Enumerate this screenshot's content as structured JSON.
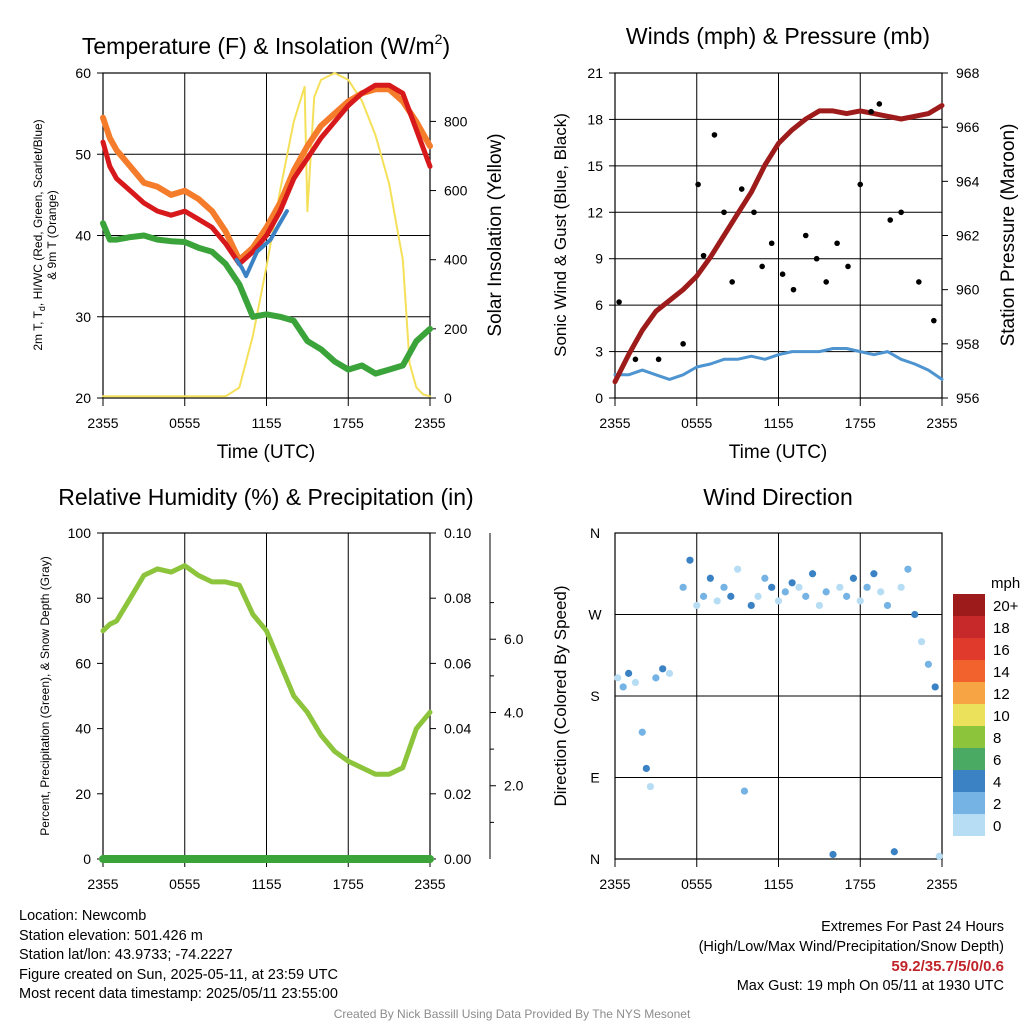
{
  "time_ticks": [
    "2355",
    "0555",
    "1155",
    "1755",
    "2355"
  ],
  "panels": {
    "temperature": {
      "title": "Temperature (F) & Insolation (W/m",
      "title_superscript": "2",
      "title_close": ")",
      "ylabel_left_line1": "2m T, T",
      "ylabel_left_sub": "d",
      "ylabel_left_line1_rest": ", HI/WC (Red, Green, Scarlet/Blue)",
      "ylabel_left_line2": "& 9m T (Orange)",
      "ylabel_right": "Solar Insolation (Yellow)",
      "xlabel": "Time (UTC)"
    },
    "winds": {
      "title": "Winds (mph) & Pressure (mb)",
      "ylabel_left": "Sonic Wind & Gust (Blue, Black)",
      "ylabel_right": "Station Pressure (Maroon)",
      "xlabel": "Time (UTC)"
    },
    "humidity": {
      "title": "Relative Humidity (%) & Precipitation (in)",
      "ylabel_left": "Percent, Precipitation (Green), & Snow Depth (Gray)"
    },
    "direction": {
      "title": "Wind Direction",
      "ylabel_left": "Direction (Colored By Speed)",
      "legend_title": "mph"
    }
  },
  "footer": {
    "location": "Location: Newcomb",
    "elevation": "Station elevation: 501.426 m",
    "latlon": "Station lat/lon: 43.9733; -74.2227",
    "created": "Figure created on Sun, 2025-05-11, at 23:59 UTC",
    "recent": "Most recent data timestamp: 2025/05/11 23:55:00",
    "extremes_title": "Extremes For Past 24 Hours",
    "extremes_subtitle": "(High/Low/Max Wind/Precipitation/Snow Depth)",
    "extremes_values": "59.2/35.7/5/0/0.6",
    "max_gust": "Max Gust: 19 mph On 05/11 at 1930 UTC",
    "credit": "Created By Nick Bassill Using Data Provided By The NYS Mesonet"
  },
  "colors": {
    "temp_2m": "#d7191c",
    "temp_9m": "#f57c2a",
    "dewpoint": "#3aa33a",
    "windchill": "#3b82c4",
    "insolation": "#f5e05a",
    "wind_speed": "#4d94d0",
    "gust": "#000000",
    "pressure": "#9e1b1b",
    "humidity": "#8cc43c",
    "precip": "#3aa33a"
  },
  "chart_data": [
    {
      "id": "temperature",
      "type": "line",
      "title": "Temperature (F) & Insolation (W/m2)",
      "xlabel": "Time (UTC)",
      "ylabel": "2m T, Td, HI/WC (Red, Green, Scarlet/Blue) & 9m T (Orange)",
      "y2label": "Solar Insolation (Yellow)",
      "x_unit": "hours since 2355 UTC",
      "xlim": [
        0,
        24
      ],
      "ylim": [
        20,
        60
      ],
      "y2lim": [
        0,
        940
      ],
      "yticks": [
        20,
        30,
        40,
        50,
        60
      ],
      "y2ticks": [
        0,
        200,
        400,
        600,
        800
      ],
      "series": [
        {
          "name": "2m T (Red)",
          "axis": "left",
          "x": [
            0,
            0.5,
            1,
            2,
            3,
            4,
            5,
            6,
            7,
            8,
            9,
            10,
            11,
            12,
            13,
            14,
            15,
            16,
            17,
            18,
            19,
            20,
            21,
            22,
            23,
            24
          ],
          "values": [
            51.5,
            48.5,
            47,
            45.5,
            44,
            43,
            42.5,
            43,
            42,
            41,
            39,
            36.5,
            38,
            40,
            43,
            47,
            49.5,
            52,
            54,
            56,
            57.5,
            58.5,
            58.5,
            57.5,
            53,
            48.5
          ]
        },
        {
          "name": "9m T (Orange)",
          "axis": "left",
          "x": [
            0,
            0.5,
            1,
            2,
            3,
            4,
            5,
            6,
            7,
            8,
            9,
            10,
            11,
            12,
            13,
            14,
            15,
            16,
            17,
            18,
            19,
            20,
            21,
            22,
            23,
            24
          ],
          "values": [
            54.5,
            52,
            50.5,
            48.5,
            46.5,
            46,
            45,
            45.5,
            44.5,
            43,
            40.5,
            37,
            38.5,
            41,
            44,
            48,
            51,
            53.5,
            55,
            56.5,
            57.5,
            58,
            58,
            56.5,
            54,
            51
          ]
        },
        {
          "name": "Td (Green)",
          "axis": "left",
          "x": [
            0,
            0.5,
            1,
            2,
            3,
            4,
            5,
            6,
            7,
            8,
            9,
            10,
            11,
            12,
            13,
            14,
            15,
            16,
            17,
            18,
            19,
            20,
            21,
            22,
            23,
            24
          ],
          "values": [
            41.5,
            39.5,
            39.5,
            39.8,
            40,
            39.5,
            39.3,
            39.2,
            38.5,
            38,
            36.5,
            34,
            30,
            30.3,
            30,
            29.5,
            27,
            26,
            24.5,
            23.5,
            24,
            23,
            23.5,
            24,
            27,
            28.5
          ]
        },
        {
          "name": "HI/WC (Blue)",
          "axis": "left",
          "x": [
            9.8,
            10.2,
            10.5,
            11.3,
            12.3,
            12.8,
            13.5
          ],
          "values": [
            37,
            36,
            35,
            38,
            39.5,
            41,
            43
          ]
        },
        {
          "name": "Solar Insolation (Yellow)",
          "axis": "right",
          "x": [
            0,
            9,
            10,
            11,
            12,
            13,
            14,
            14.8,
            15,
            15.5,
            16,
            17,
            18,
            19,
            20,
            21,
            22,
            22.5,
            23,
            23.5,
            24
          ],
          "values": [
            5,
            5,
            30,
            180,
            380,
            600,
            800,
            900,
            540,
            870,
            920,
            940,
            920,
            860,
            760,
            620,
            400,
            100,
            30,
            10,
            5
          ]
        }
      ]
    },
    {
      "id": "winds",
      "type": "line",
      "title": "Winds (mph) & Pressure (mb)",
      "xlabel": "Time (UTC)",
      "ylabel": "Sonic Wind & Gust (Blue, Black)",
      "y2label": "Station Pressure (Maroon)",
      "x_unit": "hours since 2355 UTC",
      "xlim": [
        0,
        24
      ],
      "ylim": [
        0,
        21
      ],
      "y2lim": [
        956,
        968
      ],
      "yticks": [
        0,
        3,
        6,
        9,
        12,
        15,
        18,
        21
      ],
      "y2ticks": [
        956,
        958,
        960,
        962,
        964,
        966,
        968
      ],
      "series": [
        {
          "name": "Station Pressure (Maroon)",
          "axis": "right",
          "x": [
            0,
            1,
            2,
            3,
            4,
            5,
            6,
            7,
            8,
            9,
            10,
            11,
            12,
            13,
            14,
            15,
            16,
            17,
            18,
            19,
            20,
            21,
            22,
            23,
            24
          ],
          "values": [
            956.6,
            957.6,
            958.5,
            959.2,
            959.6,
            960,
            960.5,
            961.2,
            962,
            962.8,
            963.6,
            964.6,
            965.4,
            965.9,
            966.3,
            966.6,
            966.6,
            966.5,
            966.6,
            966.5,
            966.4,
            966.3,
            966.4,
            966.5,
            966.8
          ]
        },
        {
          "name": "Sonic Wind (Blue)",
          "axis": "left",
          "x": [
            0,
            1,
            2,
            3,
            4,
            5,
            6,
            7,
            8,
            9,
            10,
            11,
            12,
            13,
            14,
            15,
            16,
            17,
            18,
            19,
            20,
            21,
            22,
            23,
            24
          ],
          "values": [
            1.5,
            1.5,
            1.8,
            1.5,
            1.2,
            1.5,
            2.0,
            2.2,
            2.5,
            2.5,
            2.7,
            2.5,
            2.8,
            3.0,
            3.0,
            3.0,
            3.2,
            3.2,
            3.0,
            2.8,
            3.0,
            2.5,
            2.2,
            1.8,
            1.2
          ]
        },
        {
          "name": "Gust (Black)",
          "axis": "left",
          "type": "scatter",
          "x": [
            0.3,
            1.5,
            3.2,
            5.0,
            6.1,
            6.5,
            7.3,
            8.0,
            8.6,
            9.3,
            10.2,
            10.8,
            11.5,
            12.3,
            13.1,
            14.0,
            14.8,
            15.5,
            16.3,
            17.1,
            18.0,
            18.8,
            19.4,
            20.2,
            21.0,
            22.3,
            23.4
          ],
          "values": [
            6.2,
            2.5,
            2.5,
            3.5,
            13.8,
            9.2,
            17.0,
            12.0,
            7.5,
            13.5,
            12.0,
            8.5,
            10.0,
            8.0,
            7.0,
            10.5,
            9.0,
            7.5,
            10.0,
            8.5,
            13.8,
            18.5,
            19.0,
            11.5,
            12.0,
            7.5,
            5.0
          ]
        }
      ]
    },
    {
      "id": "humidity",
      "type": "line",
      "title": "Relative Humidity (%) & Precipitation (in)",
      "ylabel": "Percent, Precipitation (Green), & Snow Depth (Gray)",
      "x_unit": "hours since 2355 UTC",
      "xlim": [
        0,
        24
      ],
      "ylim": [
        0,
        100
      ],
      "y2lim": [
        0,
        0.1
      ],
      "y3ticks": [
        2.0,
        4.0,
        6.0
      ],
      "yticks": [
        0,
        20,
        40,
        60,
        80,
        100
      ],
      "y2ticks": [
        0.0,
        0.02,
        0.04,
        0.06,
        0.08,
        0.1
      ],
      "series": [
        {
          "name": "Relative Humidity (Green)",
          "axis": "left",
          "x": [
            0,
            0.5,
            1,
            2,
            3,
            4,
            5,
            6,
            7,
            8,
            9,
            10,
            11,
            12,
            13,
            14,
            15,
            16,
            17,
            18,
            19,
            20,
            21,
            22,
            23,
            24
          ],
          "values": [
            70,
            72,
            73,
            80,
            87,
            89,
            88,
            90,
            87,
            85,
            85,
            84,
            75,
            70,
            60,
            50,
            45,
            38,
            33,
            30,
            28,
            26,
            26,
            28,
            40,
            45
          ]
        },
        {
          "name": "Precipitation (Green)",
          "axis": "right",
          "x": [
            0,
            24
          ],
          "values": [
            0,
            0
          ]
        }
      ]
    },
    {
      "id": "direction",
      "type": "scatter",
      "title": "Wind Direction",
      "ylabel": "Direction (Colored By Speed)",
      "x_unit": "hours since 2355 UTC",
      "xlim": [
        0,
        24
      ],
      "yticks": [
        "N",
        "E",
        "S",
        "W",
        "N"
      ],
      "ylim_degrees": [
        0,
        360
      ],
      "legend_title": "mph",
      "legend": [
        {
          "label": "20+",
          "color": "#9e1b1b"
        },
        {
          "label": "18",
          "color": "#c7282a"
        },
        {
          "label": "16",
          "color": "#e03a2c"
        },
        {
          "label": "14",
          "color": "#f2622d"
        },
        {
          "label": "12",
          "color": "#f7a444"
        },
        {
          "label": "10",
          "color": "#ece15a"
        },
        {
          "label": "8",
          "color": "#8cc43c"
        },
        {
          "label": "6",
          "color": "#4aaa64"
        },
        {
          "label": "4",
          "color": "#3b82c4"
        },
        {
          "label": "2",
          "color": "#74b3e3"
        },
        {
          "label": "0",
          "color": "#b7ddf5"
        }
      ],
      "points": [
        {
          "x": 0.2,
          "deg": 200
        },
        {
          "x": 0.6,
          "deg": 190
        },
        {
          "x": 1.0,
          "deg": 205
        },
        {
          "x": 1.5,
          "deg": 195
        },
        {
          "x": 2.0,
          "deg": 140
        },
        {
          "x": 2.3,
          "deg": 100
        },
        {
          "x": 2.6,
          "deg": 80
        },
        {
          "x": 3.0,
          "deg": 200
        },
        {
          "x": 3.5,
          "deg": 210
        },
        {
          "x": 4.0,
          "deg": 205
        },
        {
          "x": 5.0,
          "deg": 300
        },
        {
          "x": 5.5,
          "deg": 330
        },
        {
          "x": 6.0,
          "deg": 280
        },
        {
          "x": 6.5,
          "deg": 290
        },
        {
          "x": 7.0,
          "deg": 310
        },
        {
          "x": 7.5,
          "deg": 285
        },
        {
          "x": 8.0,
          "deg": 300
        },
        {
          "x": 8.5,
          "deg": 290
        },
        {
          "x": 9.0,
          "deg": 320
        },
        {
          "x": 9.5,
          "deg": 75
        },
        {
          "x": 10.0,
          "deg": 280
        },
        {
          "x": 10.5,
          "deg": 290
        },
        {
          "x": 11.0,
          "deg": 310
        },
        {
          "x": 11.5,
          "deg": 300
        },
        {
          "x": 12.0,
          "deg": 285
        },
        {
          "x": 12.5,
          "deg": 295
        },
        {
          "x": 13.0,
          "deg": 305
        },
        {
          "x": 13.5,
          "deg": 300
        },
        {
          "x": 14.0,
          "deg": 290
        },
        {
          "x": 14.5,
          "deg": 315
        },
        {
          "x": 15.0,
          "deg": 280
        },
        {
          "x": 15.5,
          "deg": 295
        },
        {
          "x": 16.0,
          "deg": 5
        },
        {
          "x": 16.5,
          "deg": 300
        },
        {
          "x": 17.0,
          "deg": 290
        },
        {
          "x": 17.5,
          "deg": 310
        },
        {
          "x": 18.0,
          "deg": 285
        },
        {
          "x": 18.5,
          "deg": 300
        },
        {
          "x": 19.0,
          "deg": 315
        },
        {
          "x": 19.5,
          "deg": 295
        },
        {
          "x": 20.0,
          "deg": 280
        },
        {
          "x": 20.5,
          "deg": 8
        },
        {
          "x": 21.0,
          "deg": 300
        },
        {
          "x": 21.5,
          "deg": 320
        },
        {
          "x": 22.0,
          "deg": 270
        },
        {
          "x": 22.5,
          "deg": 240
        },
        {
          "x": 23.0,
          "deg": 215
        },
        {
          "x": 23.5,
          "deg": 190
        },
        {
          "x": 23.8,
          "deg": 3
        }
      ]
    }
  ]
}
